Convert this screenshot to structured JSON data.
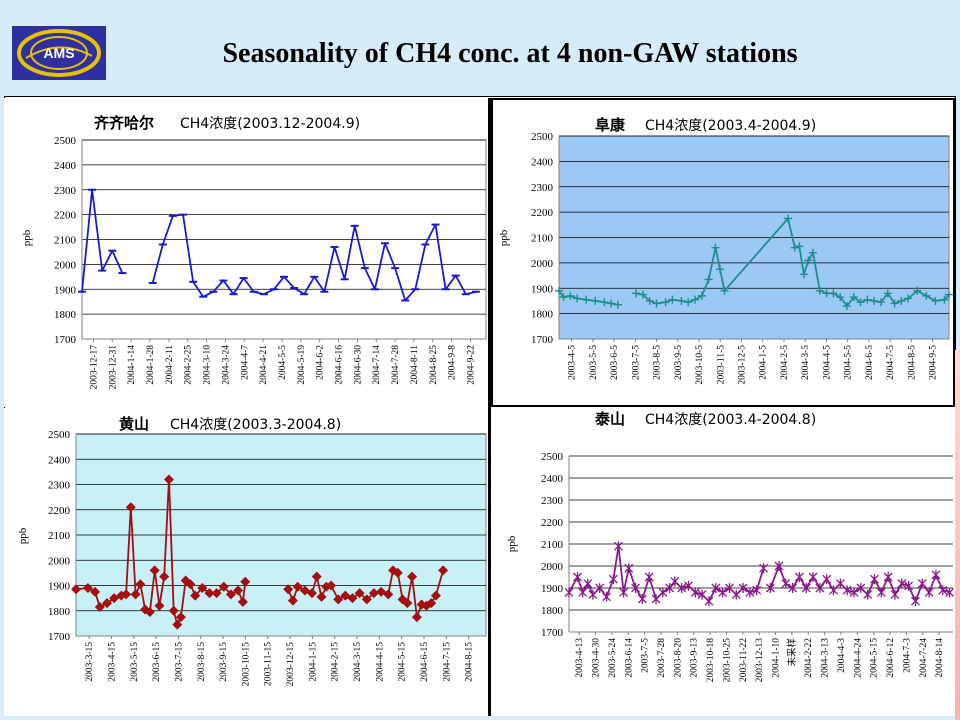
{
  "slide": {
    "title": "Seasonality of CH4 conc. at 4 non-GAW stations",
    "logo_text": "AMS"
  },
  "chart_data": [
    {
      "type": "line",
      "title": "齐齐哈尔 CH4浓度(2003.12-2004.9)",
      "title_station": "齐齐哈尔",
      "title_rest": "CH4浓度(2003.12-2004.9)",
      "ylabel": "ppb",
      "ylim": [
        1700,
        2500
      ],
      "yticks": [
        1700,
        1800,
        1900,
        2000,
        2100,
        2200,
        2300,
        2400,
        2500
      ],
      "grid": true,
      "plot_background": "#ffffff",
      "line_color": "#1a1acc",
      "marker": "dash",
      "x_labels": [
        "2003-12-17",
        "2003-12-31",
        "2004-1-14",
        "2004-1-28",
        "2004-2-11",
        "2004-2-25",
        "2004-3-10",
        "2004-3-24",
        "2004-4-7",
        "2004-4-21",
        "2004-5-5",
        "2004-5-19",
        "2004-6-2",
        "2004-6-16",
        "2004-6-30",
        "2004-7-14",
        "2004-7-28",
        "2004-8-11",
        "2004-8-25",
        "2004-9-8",
        "2004-9-22"
      ],
      "x_range": [
        0,
        20
      ],
      "segments": [
        [
          [
            0,
            1890
          ],
          [
            0.5,
            2300
          ],
          [
            1,
            1975
          ],
          [
            1.5,
            2055
          ],
          [
            2,
            1965
          ]
        ],
        [
          [
            3.5,
            1925
          ],
          [
            4,
            2080
          ],
          [
            4.5,
            2195
          ],
          [
            5,
            2200
          ],
          [
            5.5,
            1930
          ],
          [
            6,
            1870
          ],
          [
            6.5,
            1890
          ],
          [
            7,
            1935
          ],
          [
            7.5,
            1880
          ],
          [
            8,
            1945
          ],
          [
            8.5,
            1890
          ],
          [
            9,
            1880
          ],
          [
            9.5,
            1900
          ],
          [
            10,
            1950
          ],
          [
            10.5,
            1905
          ],
          [
            11,
            1880
          ],
          [
            11.5,
            1950
          ],
          [
            12,
            1890
          ],
          [
            12.5,
            2070
          ],
          [
            13,
            1940
          ],
          [
            13.5,
            2155
          ],
          [
            14,
            1985
          ],
          [
            14.5,
            1900
          ],
          [
            15,
            2085
          ],
          [
            15.5,
            1985
          ],
          [
            16,
            1855
          ],
          [
            16.5,
            1900
          ],
          [
            17,
            2080
          ],
          [
            17.5,
            2160
          ],
          [
            18,
            1900
          ],
          [
            18.5,
            1955
          ],
          [
            19,
            1880
          ],
          [
            19.5,
            1890
          ]
        ]
      ]
    },
    {
      "type": "line",
      "title": "阜康 CH4浓度(2003.4-2004.9)",
      "title_station": "阜康",
      "title_rest": "CH4浓度(2003.4-2004.9)",
      "ylabel": "ppb",
      "ylim": [
        1700,
        2500
      ],
      "yticks": [
        1700,
        1800,
        1900,
        2000,
        2100,
        2200,
        2300,
        2400,
        2500
      ],
      "grid": true,
      "plot_background": "#9cc8f4",
      "line_color": "#1e8e8e",
      "marker": "plus",
      "x_labels": [
        "2003-4-5",
        "2003-5-5",
        "2003-6-5",
        "2003-7-5",
        "2003-8-5",
        "2003-9-5",
        "2003-10-5",
        "2003-11-5",
        "2003-12-5",
        "2004-1-5",
        "2004-2-5",
        "2004-3-5",
        "2004-4-5",
        "2004-5-5",
        "2004-6-5",
        "2004-7-5",
        "2004-8-5",
        "2004-9-5"
      ],
      "x_range": [
        0,
        17.2
      ],
      "segments": [
        [
          [
            0,
            1890
          ],
          [
            0.2,
            1865
          ],
          [
            0.5,
            1870
          ],
          [
            0.8,
            1860
          ],
          [
            1.2,
            1855
          ],
          [
            1.6,
            1850
          ],
          [
            2,
            1845
          ],
          [
            2.3,
            1840
          ],
          [
            2.6,
            1835
          ]
        ],
        [
          [
            3.4,
            1880
          ],
          [
            3.7,
            1875
          ],
          [
            4,
            1850
          ],
          [
            4.3,
            1840
          ],
          [
            4.7,
            1845
          ],
          [
            5,
            1855
          ],
          [
            5.4,
            1850
          ],
          [
            5.7,
            1845
          ],
          [
            6,
            1855
          ],
          [
            6.3,
            1870
          ],
          [
            6.6,
            1935
          ],
          [
            6.9,
            2060
          ],
          [
            7.1,
            1975
          ],
          [
            7.3,
            1890
          ],
          [
            10.1,
            2175
          ],
          [
            10.4,
            2060
          ],
          [
            10.6,
            2065
          ],
          [
            10.8,
            1955
          ],
          [
            11,
            2010
          ],
          [
            11.2,
            2040
          ],
          [
            11.5,
            1890
          ],
          [
            11.8,
            1880
          ],
          [
            12.1,
            1880
          ],
          [
            12.4,
            1865
          ],
          [
            12.7,
            1830
          ],
          [
            13,
            1865
          ],
          [
            13.3,
            1845
          ],
          [
            13.6,
            1855
          ],
          [
            13.9,
            1850
          ],
          [
            14.2,
            1845
          ],
          [
            14.5,
            1880
          ],
          [
            14.8,
            1840
          ],
          [
            15.1,
            1850
          ],
          [
            15.4,
            1860
          ],
          [
            15.8,
            1890
          ],
          [
            16.2,
            1870
          ],
          [
            16.6,
            1850
          ],
          [
            17,
            1855
          ],
          [
            17.2,
            1875
          ]
        ]
      ]
    },
    {
      "type": "line",
      "title": "黄山 CH4浓度(2003.3-2004.8)",
      "title_station": "黄山",
      "title_rest": "CH4浓度(2003.3-2004.8)",
      "ylabel": "ppb",
      "ylim": [
        1700,
        2500
      ],
      "yticks": [
        1700,
        1800,
        1900,
        2000,
        2100,
        2200,
        2300,
        2400,
        2500
      ],
      "grid": true,
      "plot_background": "#c7f0f7",
      "line_color": "#a50e0e",
      "marker": "diamond",
      "x_labels": [
        "2003-3-15",
        "2003-4-15",
        "2003-5-15",
        "2003-6-15",
        "2003-7-15",
        "2003-8-15",
        "2003-9-15",
        "2003-10-15",
        "2003-11-15",
        "2003-12-15",
        "2004-1-15",
        "2004-2-15",
        "2004-3-15",
        "2004-4-15",
        "2004-5-15",
        "2004-6-15",
        "2004-7-15",
        "2004-8-15"
      ],
      "x_range": [
        0,
        17.2
      ],
      "segments": [
        [
          [
            0,
            1885
          ],
          [
            0.5,
            1890
          ],
          [
            0.8,
            1875
          ],
          [
            1,
            1815
          ],
          [
            1.3,
            1830
          ],
          [
            1.6,
            1850
          ],
          [
            1.9,
            1860
          ],
          [
            2.1,
            1865
          ],
          [
            2.3,
            2210
          ],
          [
            2.5,
            1865
          ],
          [
            2.7,
            1905
          ],
          [
            2.9,
            1805
          ],
          [
            3.1,
            1795
          ],
          [
            3.3,
            1960
          ],
          [
            3.5,
            1820
          ],
          [
            3.7,
            1935
          ],
          [
            3.9,
            2320
          ],
          [
            4.1,
            1800
          ],
          [
            4.25,
            1745
          ],
          [
            4.4,
            1775
          ],
          [
            4.6,
            1920
          ],
          [
            4.8,
            1905
          ],
          [
            5,
            1860
          ],
          [
            5.3,
            1890
          ],
          [
            5.6,
            1870
          ],
          [
            5.9,
            1870
          ],
          [
            6.2,
            1895
          ],
          [
            6.5,
            1865
          ],
          [
            6.8,
            1880
          ],
          [
            7,
            1835
          ],
          [
            7.1,
            1915
          ]
        ],
        [
          [
            8.9,
            1885
          ],
          [
            9.1,
            1840
          ],
          [
            9.3,
            1895
          ],
          [
            9.6,
            1880
          ],
          [
            9.9,
            1870
          ],
          [
            10.1,
            1935
          ],
          [
            10.3,
            1855
          ],
          [
            10.5,
            1895
          ],
          [
            10.7,
            1900
          ],
          [
            11,
            1845
          ],
          [
            11.3,
            1860
          ],
          [
            11.6,
            1850
          ],
          [
            11.9,
            1870
          ],
          [
            12.2,
            1845
          ],
          [
            12.5,
            1870
          ],
          [
            12.8,
            1875
          ],
          [
            13.1,
            1865
          ],
          [
            13.3,
            1960
          ],
          [
            13.5,
            1950
          ],
          [
            13.7,
            1845
          ],
          [
            13.9,
            1830
          ],
          [
            14.1,
            1935
          ],
          [
            14.3,
            1775
          ],
          [
            14.5,
            1825
          ],
          [
            14.7,
            1820
          ],
          [
            14.9,
            1830
          ],
          [
            15.1,
            1860
          ],
          [
            15.4,
            1960
          ]
        ]
      ]
    },
    {
      "type": "line",
      "title": "泰山 CH4浓度(2003.4-2004.8)",
      "title_station": "泰山",
      "title_rest": "CH4浓度(2003.4-2004.8)",
      "ylabel": "ppb",
      "ylim": [
        1700,
        2500
      ],
      "yticks": [
        1700,
        1800,
        1900,
        2000,
        2100,
        2200,
        2300,
        2400,
        2500
      ],
      "grid": true,
      "plot_background": "#ffffff",
      "line_color": "#8a1a8a",
      "marker": "star",
      "x_labels": [
        "2003-4-13",
        "2003-4-30",
        "2003-5-24",
        "2003-6-14",
        "2003-7-5",
        "2003-7-28",
        "2003-8-20",
        "2003-9-13",
        "2003-10-18",
        "2003-10-25",
        "2003-11-22",
        "2003-12-13",
        "2004-1-10",
        "未采样",
        "2004-2-22",
        "2004-3-13",
        "2004-4-3",
        "2004-4-24",
        "2004-5-15",
        "2004-6-12",
        "2004-7-3",
        "2004-7-24",
        "2004-8-14"
      ],
      "x_range": [
        0,
        22.5
      ],
      "segments": [
        [
          [
            0,
            1880
          ],
          [
            0.5,
            1950
          ],
          [
            0.8,
            1880
          ],
          [
            1.1,
            1920
          ],
          [
            1.4,
            1870
          ],
          [
            1.8,
            1900
          ],
          [
            2.2,
            1860
          ],
          [
            2.6,
            1940
          ],
          [
            2.9,
            2090
          ],
          [
            3.2,
            1880
          ],
          [
            3.5,
            1990
          ],
          [
            3.9,
            1900
          ],
          [
            4.3,
            1850
          ],
          [
            4.7,
            1950
          ],
          [
            5.1,
            1850
          ],
          [
            5.5,
            1880
          ],
          [
            5.9,
            1900
          ],
          [
            6.2,
            1930
          ],
          [
            6.6,
            1900
          ],
          [
            7,
            1910
          ],
          [
            7.4,
            1880
          ],
          [
            7.8,
            1870
          ],
          [
            8.2,
            1840
          ],
          [
            8.6,
            1900
          ],
          [
            9,
            1880
          ],
          [
            9.4,
            1900
          ],
          [
            9.8,
            1870
          ],
          [
            10.2,
            1900
          ],
          [
            10.6,
            1880
          ],
          [
            11,
            1890
          ],
          [
            11.4,
            1990
          ]
        ],
        [
          [
            11.8,
            1900
          ],
          [
            12.3,
            2000
          ],
          [
            12.7,
            1920
          ],
          [
            13.1,
            1900
          ],
          [
            13.5,
            1950
          ],
          [
            13.9,
            1900
          ],
          [
            14.3,
            1950
          ],
          [
            14.7,
            1900
          ],
          [
            15.1,
            1940
          ],
          [
            15.5,
            1890
          ],
          [
            15.9,
            1920
          ],
          [
            16.3,
            1890
          ],
          [
            16.7,
            1880
          ],
          [
            17.1,
            1900
          ],
          [
            17.5,
            1870
          ],
          [
            17.9,
            1940
          ],
          [
            18.3,
            1880
          ],
          [
            18.7,
            1950
          ],
          [
            19.1,
            1870
          ],
          [
            19.5,
            1920
          ],
          [
            19.9,
            1910
          ],
          [
            20.3,
            1840
          ],
          [
            20.7,
            1920
          ],
          [
            21.1,
            1880
          ],
          [
            21.5,
            1960
          ],
          [
            21.9,
            1890
          ],
          [
            22.3,
            1880
          ]
        ]
      ]
    }
  ]
}
